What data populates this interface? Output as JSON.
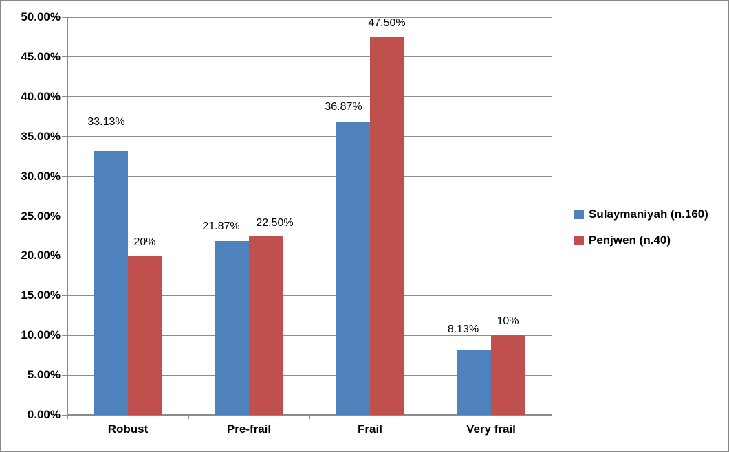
{
  "chart_data": {
    "type": "bar",
    "title": "",
    "xlabel": "",
    "ylabel": "",
    "categories": [
      "Robust",
      "Pre-frail",
      "Frail",
      "Very frail"
    ],
    "series": [
      {
        "name": "Sulaymaniyah (n.160)",
        "color": "#4F81BD",
        "values": [
          33.13,
          21.87,
          36.87,
          8.13
        ],
        "data_labels": [
          "33.13%",
          "21.87%",
          "36.87%",
          "8.13%"
        ],
        "label_dx": [
          -7,
          -16,
          -14,
          -16
        ],
        "label_gap": [
          33,
          12,
          12,
          21
        ]
      },
      {
        "name": "Penjwen (n.40)",
        "color": "#C0504D",
        "values": [
          20,
          22.5,
          47.5,
          10
        ],
        "data_labels": [
          "20%",
          "22.50%",
          "47.50%",
          "10%"
        ],
        "label_dx": [
          0,
          13,
          0,
          0
        ],
        "label_gap": [
          10,
          9,
          11,
          11
        ]
      }
    ],
    "ylim": [
      0,
      50
    ],
    "y_ticks": [
      "0.00%",
      "5.00%",
      "10.00%",
      "15.00%",
      "20.00%",
      "25.00%",
      "30.00%",
      "35.00%",
      "40.00%",
      "45.00%",
      "50.00%"
    ],
    "grid": true,
    "legend_position": "right"
  },
  "colors": {
    "series_blue": "#4F81BD",
    "series_red": "#C0504D",
    "gridline": "#8C8C8C",
    "axis": "#8C8C8C",
    "figure_border": "#878787",
    "text": "#000000",
    "background": "#FFFFFF"
  }
}
